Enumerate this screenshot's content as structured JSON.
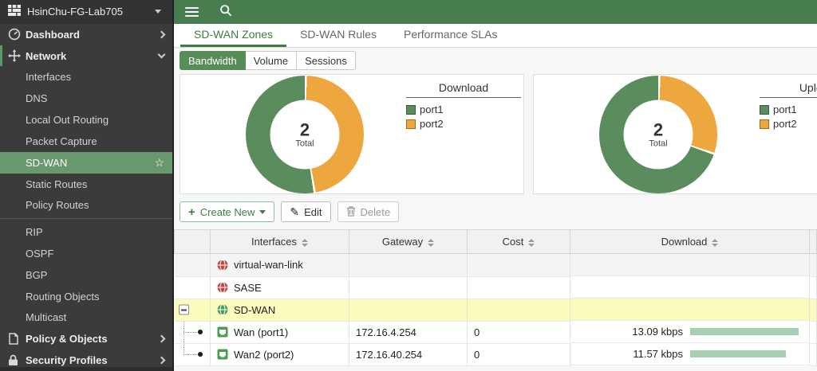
{
  "colors": {
    "topbar_green": "#477d4f",
    "accent_green": "#3c7d46",
    "sidebar_selected_green": "#68986e",
    "donut_green": "#5b8c5d",
    "donut_orange": "#eea63e",
    "bar_green": "#a5cfb0",
    "selected_row_yellow": "#fbfbbd"
  },
  "sidebar": {
    "device_name": "HsinChu-FG-Lab705",
    "items": [
      {
        "label": "Dashboard"
      },
      {
        "label": "Network"
      },
      {
        "label": "Interfaces"
      },
      {
        "label": "DNS"
      },
      {
        "label": "Local Out Routing"
      },
      {
        "label": "Packet Capture"
      },
      {
        "label": "SD-WAN",
        "selected": true,
        "starred": true
      },
      {
        "label": "Static Routes"
      },
      {
        "label": "Policy Routes"
      },
      {
        "label": "RIP"
      },
      {
        "label": "OSPF"
      },
      {
        "label": "BGP"
      },
      {
        "label": "Routing Objects"
      },
      {
        "label": "Multicast"
      },
      {
        "label": "Policy & Objects"
      },
      {
        "label": "Security Profiles"
      }
    ],
    "star_glyph": "☆"
  },
  "tabs": {
    "zones": "SD-WAN Zones",
    "rules": "SD-WAN Rules",
    "slas": "Performance SLAs"
  },
  "view_toggle": {
    "bandwidth": "Bandwidth",
    "volume": "Volume",
    "sessions": "Sessions"
  },
  "chart_data": [
    {
      "type": "donut",
      "title": "Download",
      "center_value": "2",
      "center_label": "Total",
      "legend_position": "right",
      "series": [
        {
          "name": "port1",
          "color": "#5b8c5d",
          "percent": 53
        },
        {
          "name": "port2",
          "color": "#eea63e",
          "percent": 47
        }
      ]
    },
    {
      "type": "donut",
      "title": "Upload",
      "center_value": "2",
      "center_label": "Total",
      "legend_position": "right",
      "series": [
        {
          "name": "port1",
          "color": "#5b8c5d",
          "percent": 70
        },
        {
          "name": "port2",
          "color": "#eea63e",
          "percent": 30
        }
      ]
    }
  ],
  "toolbar": {
    "create_new": "Create New",
    "edit": "Edit",
    "delete": "Delete"
  },
  "table": {
    "headers": {
      "interfaces": "Interfaces",
      "gateway": "Gateway",
      "cost": "Cost",
      "download": "Download"
    },
    "rows": [
      {
        "interface": "virtual-wan-link",
        "gateway": "",
        "cost": "",
        "download": ""
      },
      {
        "interface": "SASE",
        "gateway": "",
        "cost": "",
        "download": ""
      },
      {
        "interface": "SD-WAN",
        "gateway": "",
        "cost": "",
        "download": ""
      },
      {
        "interface": "Wan (port1)",
        "gateway": "172.16.4.254",
        "cost": "0",
        "download": "13.09 kbps",
        "download_kbps": 13.09
      },
      {
        "interface": "Wan2 (port2)",
        "gateway": "172.16.40.254",
        "cost": "0",
        "download": "11.57 kbps",
        "download_kbps": 11.57
      }
    ]
  }
}
